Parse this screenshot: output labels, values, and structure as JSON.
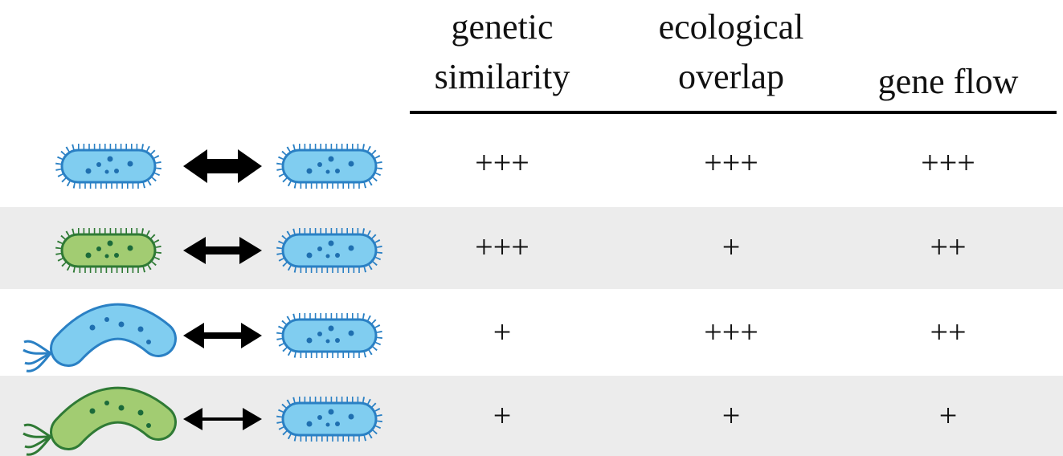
{
  "table": {
    "columns": [
      [
        "genetic",
        "similarity"
      ],
      [
        "ecological",
        "overlap"
      ],
      [
        "gene flow"
      ]
    ],
    "rows": [
      [
        "+++",
        "+++",
        "+++"
      ],
      [
        "+++",
        "+",
        "++"
      ],
      [
        "+",
        "+++",
        "++"
      ],
      [
        "+",
        "+",
        "+"
      ]
    ]
  }
}
